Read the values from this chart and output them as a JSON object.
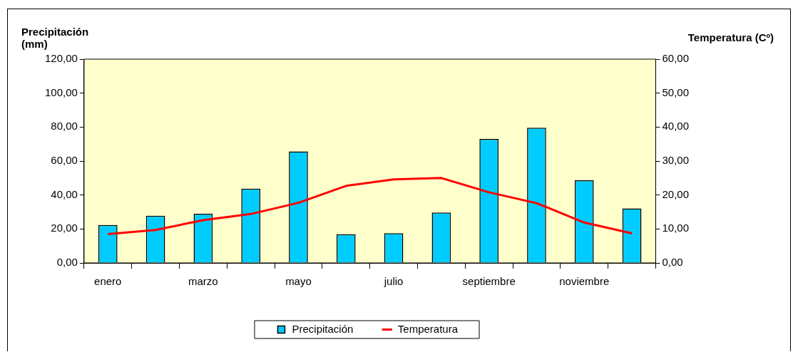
{
  "chart_data": {
    "type": "bar",
    "categories": [
      "enero",
      null,
      "marzo",
      null,
      "mayo",
      null,
      "julio",
      null,
      "septiembre",
      null,
      "noviembre",
      null
    ],
    "ylabel": "Precipitación\n(mm)",
    "y2label": "Temperatura (Cº)",
    "series": [
      {
        "name": "Precipitación",
        "color": "#00ccff",
        "values": [
          22.3,
          27.8,
          29.0,
          43.7,
          65.7,
          16.9,
          17.5,
          29.7,
          73.0,
          79.6,
          48.7,
          32.1
        ]
      },
      {
        "name": "Temperatura",
        "type": "line",
        "axis": "y2",
        "color": "#ff0000",
        "values": [
          8.5,
          9.7,
          12.6,
          14.4,
          17.7,
          22.7,
          24.6,
          25.0,
          20.8,
          17.6,
          11.9,
          8.7
        ]
      }
    ],
    "ylim": [
      0,
      120
    ],
    "yticks": [
      {
        "value": 0,
        "label": "0,00"
      },
      {
        "value": 20,
        "label": "20,00"
      },
      {
        "value": 40,
        "label": "40,00"
      },
      {
        "value": 60,
        "label": "60,00"
      },
      {
        "value": 80,
        "label": "80,00"
      },
      {
        "value": 100,
        "label": "100,00"
      },
      {
        "value": 120,
        "label": "120,00"
      }
    ],
    "y2lim": [
      0,
      60
    ],
    "y2ticks": [
      {
        "value": 0,
        "label": "0,00"
      },
      {
        "value": 10,
        "label": "10,00"
      },
      {
        "value": 20,
        "label": "20,00"
      },
      {
        "value": 30,
        "label": "30,00"
      },
      {
        "value": 40,
        "label": "40,00"
      },
      {
        "value": 50,
        "label": "50,00"
      },
      {
        "value": 60,
        "label": "60,00"
      }
    ],
    "legend": "bottom",
    "marker": "none"
  }
}
